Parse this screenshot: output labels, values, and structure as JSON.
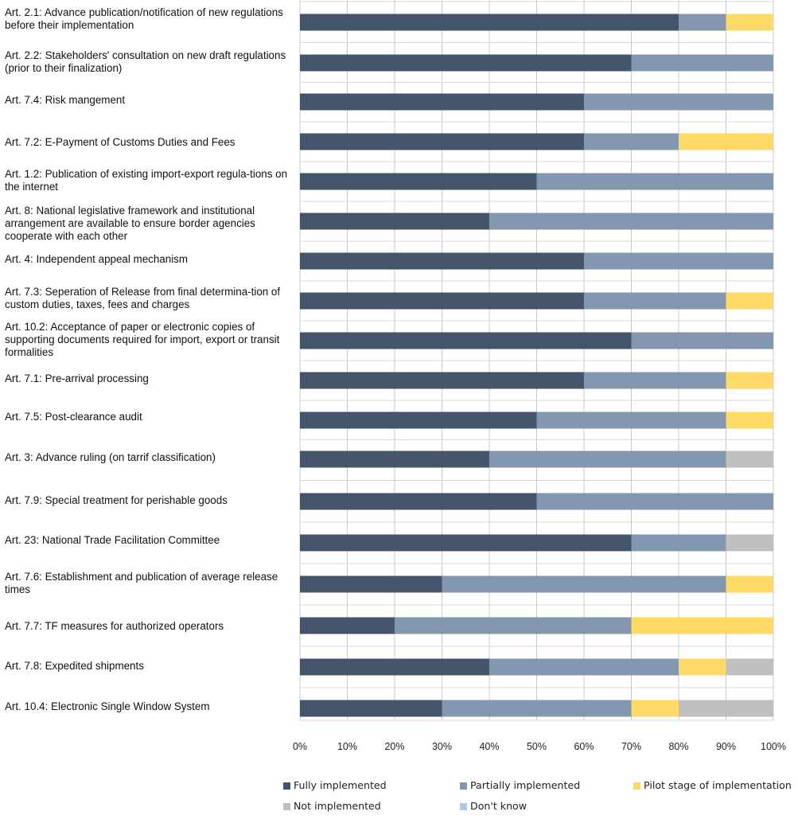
{
  "chart_data": {
    "type": "bar",
    "orientation": "horizontal",
    "stacked": "percent",
    "categories": [
      "Art. 2.1: Advance publication/notification of new regulations before their implementation",
      "Art. 2.2: Stakeholders' consultation on new draft regulations (prior to their finalization)",
      "Art. 7.4: Risk mangement",
      "Art. 7.2: E-Payment of Customs Duties and Fees",
      "Art. 1.2: Publication of existing import-export regula-tions on the internet",
      "Art. 8: National legislative framework and institutional arrangement are available to ensure border agencies cooperate with each other",
      "Art. 4: Independent appeal mechanism",
      "Art. 7.3: Seperation of Release from final determina-tion of custom duties, taxes, fees and charges",
      "Art. 10.2: Acceptance of paper or electronic copies of supporting documents required for import, export or transit formalities",
      "Art. 7.1: Pre-arrival processing",
      "Art. 7.5: Post-clearance audit",
      "Art. 3: Advance ruling (on tarrif classification)",
      "Art. 7.9: Special treatment for perishable goods",
      "Art. 23: National Trade Facilitation Committee",
      "Art. 7.6: Establishment and publication of average release times",
      "Art. 7.7: TF measures for authorized operators",
      "Art. 7.8: Expedited shipments",
      "Art. 10.4: Electronic Single Window System"
    ],
    "series": [
      {
        "name": "Fully implemented",
        "color": "#44546a",
        "values": [
          80,
          70,
          60,
          60,
          50,
          40,
          60,
          60,
          70,
          60,
          50,
          40,
          50,
          70,
          30,
          20,
          40,
          30
        ]
      },
      {
        "name": "Partially implemented",
        "color": "#8497b0",
        "values": [
          10,
          30,
          40,
          20,
          50,
          60,
          40,
          30,
          30,
          30,
          40,
          50,
          50,
          20,
          60,
          50,
          40,
          40
        ]
      },
      {
        "name": "Pilot stage of implementation",
        "color": "#ffd966",
        "values": [
          10,
          0,
          0,
          20,
          0,
          0,
          0,
          10,
          0,
          10,
          10,
          0,
          0,
          0,
          10,
          30,
          10,
          10
        ]
      },
      {
        "name": "Not implemented",
        "color": "#bfbfbf",
        "values": [
          0,
          0,
          0,
          0,
          0,
          0,
          0,
          0,
          0,
          0,
          0,
          10,
          0,
          10,
          0,
          0,
          10,
          20
        ]
      },
      {
        "name": "Don't know",
        "color": "#b4c7e7",
        "values": [
          0,
          0,
          0,
          0,
          0,
          0,
          0,
          0,
          0,
          0,
          0,
          0,
          0,
          0,
          0,
          0,
          0,
          0
        ]
      }
    ],
    "x_ticks": [
      "0%",
      "10%",
      "20%",
      "30%",
      "40%",
      "50%",
      "60%",
      "70%",
      "80%",
      "90%",
      "100%"
    ],
    "xlim": [
      0,
      100
    ],
    "grid": true,
    "legend_position": "bottom"
  }
}
